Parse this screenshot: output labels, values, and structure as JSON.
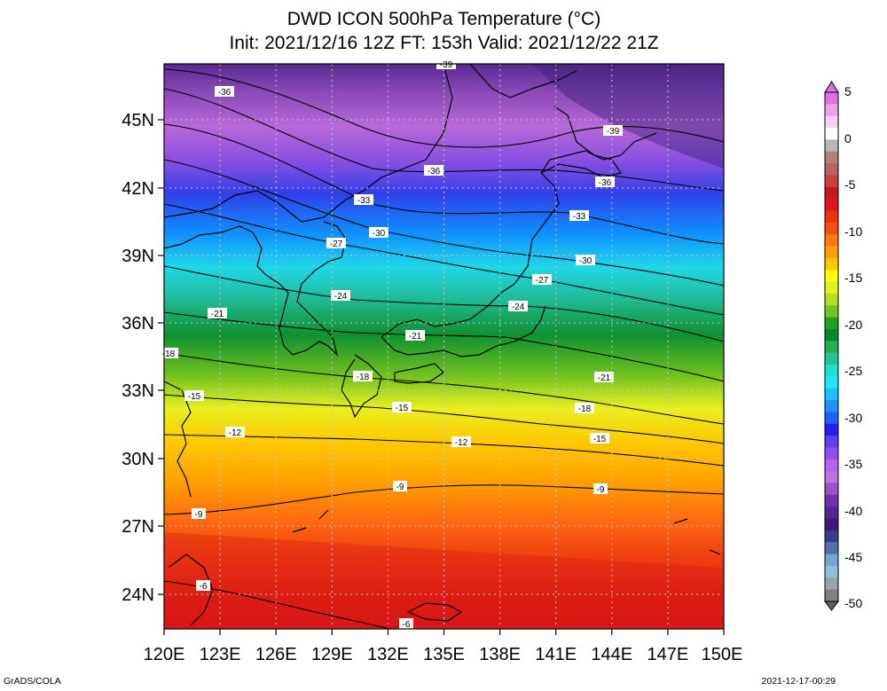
{
  "title": {
    "line1": "DWD ICON 500hPa Temperature (°C)",
    "line2": "Init: 2021/12/16 12Z  FT: 153h  Valid: 2021/12/22 21Z"
  },
  "map": {
    "lat_labels": [
      "45N",
      "42N",
      "39N",
      "36N",
      "33N",
      "30N",
      "27N",
      "24N"
    ],
    "lon_labels": [
      "120E",
      "123E",
      "126E",
      "129E",
      "132E",
      "135E",
      "138E",
      "141E",
      "144E",
      "147E",
      "150E"
    ],
    "contour_labels": [
      "-39",
      "-36",
      "-39",
      "-36",
      "-36",
      "-33",
      "-33",
      "-30",
      "-27",
      "-30",
      "-27",
      "-24",
      "-24",
      "-21",
      "-21",
      "-18",
      "-18",
      "-21",
      "-15",
      "-15",
      "-18",
      "-12",
      "-12",
      "-15",
      "-9",
      "-9",
      "-9",
      "-6",
      "-6"
    ]
  },
  "colorbar": {
    "labels": [
      "5",
      "0",
      "-5",
      "-10",
      "-15",
      "-20",
      "-25",
      "-30",
      "-35",
      "-40",
      "-45",
      "-50"
    ],
    "colors": [
      "#e070e0",
      "#f0a0f0",
      "#f8d0f8",
      "#ffffff",
      "#b8b8b8",
      "#b08080",
      "#c06060",
      "#c84040",
      "#c81818",
      "#e01818",
      "#f03010",
      "#f85010",
      "#ff7810",
      "#ffa000",
      "#ffc800",
      "#ffff00",
      "#e0f020",
      "#b0e020",
      "#70c820",
      "#20a020",
      "#008c20",
      "#20b050",
      "#20c890",
      "#20e0d0",
      "#20e8ff",
      "#20c0ff",
      "#2090ff",
      "#2060ff",
      "#2020f0",
      "#6040f0",
      "#9050f0",
      "#b860f0",
      "#c070e0",
      "#a050c8",
      "#7030b0",
      "#502890",
      "#401880",
      "#3c3c8c",
      "#5070b0",
      "#70a8d0",
      "#90c0d8",
      "#a0a0b0",
      "#808080"
    ]
  },
  "footer": {
    "credit": "GrADS/COLA",
    "timestamp": "2021-12-17-00:29"
  }
}
